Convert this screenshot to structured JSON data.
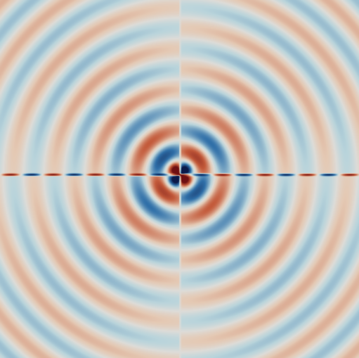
{
  "image": {
    "subject": "wave-field",
    "colormap": {
      "negative_strong": "#0b1a4a",
      "negative": "#2f6fa8",
      "negative_soft": "#b9d4db",
      "neutral": "#dddcd8",
      "positive_soft": "#e4c9b4",
      "positive": "#c35a3a",
      "positive_strong": "#6e0f12"
    }
  }
}
